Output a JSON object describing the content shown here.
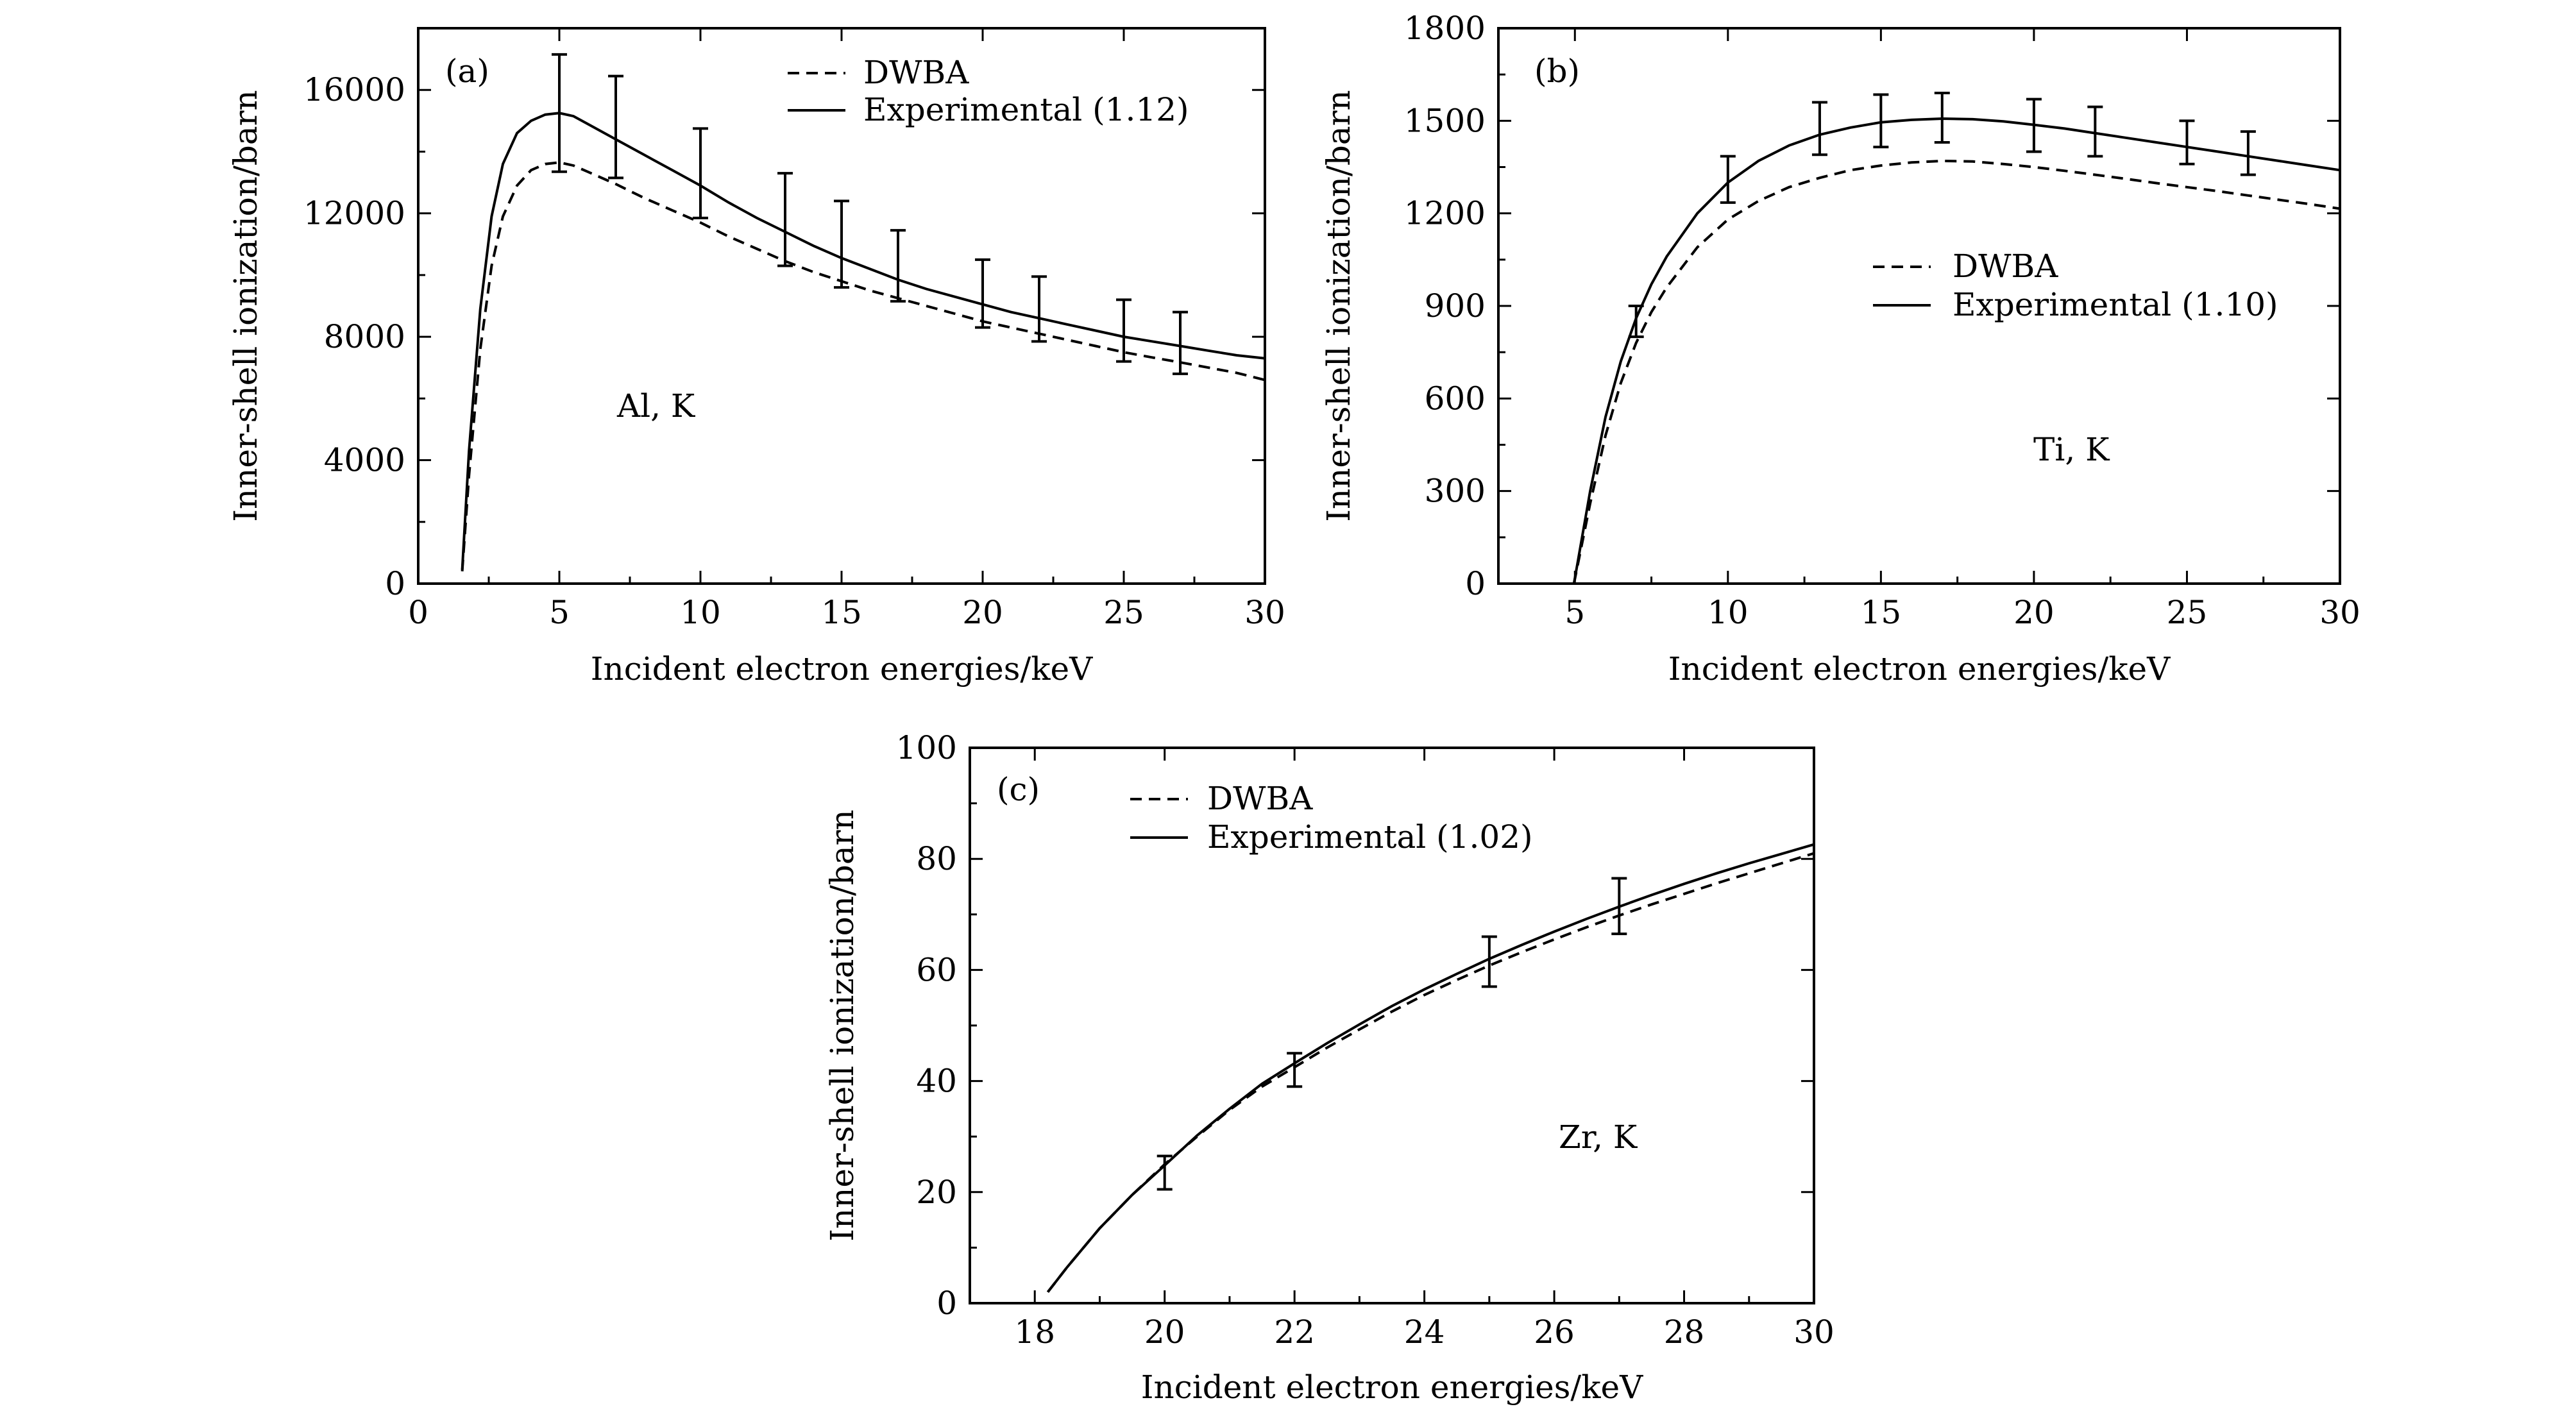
{
  "figure": {
    "background": "#ffffff",
    "ink": "#000000"
  },
  "chart_data": [
    {
      "id": "a",
      "type": "line",
      "panel_label": "(a)",
      "annotation": "Al, K",
      "xlabel": "Incident electron energies/keV",
      "ylabel": "Inner-shell ionization/barn",
      "xlim": [
        0,
        30
      ],
      "ylim": [
        0,
        18000
      ],
      "xticks": [
        0,
        5,
        10,
        15,
        20,
        25,
        30
      ],
      "xtick_labels": [
        "0",
        "5",
        "10",
        "15",
        "20",
        "25",
        "30"
      ],
      "yticks": [
        0,
        4000,
        8000,
        12000,
        16000
      ],
      "ytick_labels": [
        "0",
        "4000",
        "8000",
        "12000",
        "16000"
      ],
      "legend_position": "top-right",
      "series": [
        {
          "name": "DWBA",
          "style": "dashed",
          "x": [
            1.56,
            1.8,
            2.2,
            2.6,
            3.0,
            3.5,
            4.0,
            4.5,
            5.0,
            5.5,
            6.0,
            7.0,
            8.0,
            9.0,
            10.0,
            11.0,
            12.0,
            13.0,
            14.0,
            15.0,
            16.0,
            17.0,
            18.0,
            19.0,
            20.0,
            21.0,
            22.0,
            23.0,
            24.0,
            25.0,
            26.0,
            27.0,
            28.0,
            29.0,
            30.0
          ],
          "y": [
            400,
            3500,
            7600,
            10300,
            11900,
            12900,
            13400,
            13600,
            13650,
            13550,
            13350,
            12950,
            12500,
            12100,
            11700,
            11250,
            10850,
            10450,
            10100,
            9800,
            9500,
            9250,
            9000,
            8750,
            8500,
            8300,
            8100,
            7900,
            7700,
            7500,
            7330,
            7170,
            7000,
            6830,
            6600
          ]
        },
        {
          "name": "Experimental (1.12)",
          "style": "solid",
          "x": [
            1.56,
            1.8,
            2.2,
            2.6,
            3.0,
            3.5,
            4.0,
            4.5,
            5.0,
            5.5,
            6.0,
            7.0,
            8.0,
            9.0,
            10.0,
            11.0,
            12.0,
            13.0,
            14.0,
            15.0,
            16.0,
            17.0,
            18.0,
            19.0,
            20.0,
            21.0,
            22.0,
            23.0,
            24.0,
            25.0,
            26.0,
            27.0,
            28.0,
            29.0,
            30.0
          ],
          "y": [
            450,
            4300,
            8900,
            11900,
            13600,
            14600,
            15000,
            15200,
            15250,
            15150,
            14900,
            14400,
            13900,
            13400,
            12900,
            12350,
            11850,
            11400,
            10950,
            10550,
            10200,
            9850,
            9550,
            9300,
            9050,
            8800,
            8600,
            8400,
            8200,
            8000,
            7850,
            7700,
            7550,
            7400,
            7300
          ]
        }
      ],
      "error_bars": {
        "x": [
          5,
          7,
          10,
          13,
          15,
          17,
          20,
          22,
          25,
          27
        ],
        "y": [
          15250,
          14800,
          13300,
          11800,
          11000,
          10300,
          9400,
          8900,
          8200,
          7800
        ],
        "err": [
          1900,
          1650,
          1450,
          1500,
          1400,
          1150,
          1100,
          1050,
          1000,
          1000
        ]
      }
    },
    {
      "id": "b",
      "type": "line",
      "panel_label": "(b)",
      "annotation": "Ti, K",
      "xlabel": "Incident electron energies/keV",
      "ylabel": "Inner-shell ionization/barn",
      "xlim": [
        2.5,
        30
      ],
      "ylim": [
        0,
        1800
      ],
      "xticks": [
        5,
        10,
        15,
        20,
        25,
        30
      ],
      "xtick_labels": [
        "5",
        "10",
        "15",
        "20",
        "25",
        "30"
      ],
      "yticks": [
        0,
        300,
        600,
        900,
        1200,
        1500,
        1800
      ],
      "ytick_labels": [
        "0",
        "300",
        "600",
        "900",
        "1200",
        "1500",
        "1800"
      ],
      "legend_position": "center-right",
      "series": [
        {
          "name": "DWBA",
          "style": "dashed",
          "x": [
            4.97,
            5.5,
            6.0,
            6.5,
            7.0,
            7.5,
            8.0,
            9.0,
            10.0,
            11.0,
            12.0,
            13.0,
            14.0,
            15.0,
            16.0,
            17.0,
            18.0,
            19.0,
            20.0,
            21.0,
            22.0,
            23.0,
            24.0,
            25.0,
            26.0,
            27.0,
            28.0,
            29.0,
            30.0
          ],
          "y": [
            0,
            260,
            480,
            650,
            780,
            880,
            960,
            1090,
            1180,
            1240,
            1285,
            1315,
            1340,
            1355,
            1365,
            1370,
            1368,
            1360,
            1350,
            1338,
            1325,
            1312,
            1298,
            1285,
            1272,
            1258,
            1244,
            1230,
            1215
          ]
        },
        {
          "name": "Experimental (1.10)",
          "style": "solid",
          "x": [
            4.97,
            5.5,
            6.0,
            6.5,
            7.0,
            7.5,
            8.0,
            9.0,
            10.0,
            11.0,
            12.0,
            13.0,
            14.0,
            15.0,
            16.0,
            17.0,
            18.0,
            19.0,
            20.0,
            21.0,
            22.0,
            23.0,
            24.0,
            25.0,
            26.0,
            27.0,
            28.0,
            29.0,
            30.0
          ],
          "y": [
            0,
            300,
            540,
            720,
            860,
            970,
            1060,
            1200,
            1300,
            1370,
            1420,
            1455,
            1478,
            1495,
            1503,
            1507,
            1505,
            1498,
            1487,
            1475,
            1460,
            1445,
            1430,
            1415,
            1400,
            1385,
            1370,
            1355,
            1340
          ]
        }
      ],
      "error_bars": {
        "x": [
          7,
          10,
          13,
          15,
          17,
          20,
          22,
          25,
          27
        ],
        "y": [
          850,
          1310,
          1475,
          1500,
          1510,
          1485,
          1465,
          1430,
          1395
        ],
        "err": [
          50,
          75,
          85,
          85,
          80,
          85,
          80,
          70,
          70
        ]
      }
    },
    {
      "id": "c",
      "type": "line",
      "panel_label": "(c)",
      "annotation": "Zr, K",
      "xlabel": "Incident electron energies/keV",
      "ylabel": "Inner-shell ionization/barn",
      "xlim": [
        17,
        30
      ],
      "ylim": [
        0,
        100
      ],
      "xticks": [
        18,
        20,
        22,
        24,
        26,
        28,
        30
      ],
      "xtick_labels": [
        "18",
        "20",
        "22",
        "24",
        "26",
        "28",
        "30"
      ],
      "yticks": [
        0,
        20,
        40,
        60,
        80,
        100
      ],
      "ytick_labels": [
        "0",
        "20",
        "40",
        "60",
        "80",
        "100"
      ],
      "legend_position": "top-left",
      "series": [
        {
          "name": "DWBA",
          "style": "dashed",
          "x": [
            18.2,
            18.5,
            19.0,
            19.5,
            20.0,
            20.5,
            21.0,
            21.5,
            22.0,
            22.5,
            23.0,
            23.5,
            24.0,
            24.5,
            25.0,
            25.5,
            26.0,
            26.5,
            27.0,
            27.5,
            28.0,
            28.5,
            29.0,
            29.5,
            30.0
          ],
          "y": [
            2,
            6.5,
            13.5,
            19.5,
            25,
            30,
            34.8,
            39,
            42.5,
            46,
            49.3,
            52.5,
            55.5,
            58.2,
            60.8,
            63.2,
            65.5,
            67.7,
            69.8,
            71.8,
            73.7,
            75.6,
            77.4,
            79.2,
            81
          ]
        },
        {
          "name": "Experimental (1.02)",
          "style": "solid",
          "x": [
            18.2,
            18.5,
            19.0,
            19.5,
            20.0,
            20.5,
            21.0,
            21.5,
            22.0,
            22.5,
            23.0,
            23.5,
            24.0,
            24.5,
            25.0,
            25.5,
            26.0,
            26.5,
            27.0,
            27.5,
            28.0,
            28.5,
            29.0,
            29.5,
            30.0
          ],
          "y": [
            2,
            6.5,
            13.5,
            19.5,
            24.8,
            30.2,
            35,
            39.5,
            43.2,
            46.8,
            50.2,
            53.5,
            56.5,
            59.3,
            62,
            64.5,
            66.9,
            69.2,
            71.4,
            73.5,
            75.5,
            77.4,
            79.2,
            80.9,
            82.6
          ]
        }
      ],
      "error_bars": {
        "x": [
          20,
          22,
          25,
          27
        ],
        "y": [
          23.5,
          42,
          61.5,
          71.5
        ],
        "err": [
          3,
          3,
          4.5,
          5
        ]
      }
    }
  ]
}
